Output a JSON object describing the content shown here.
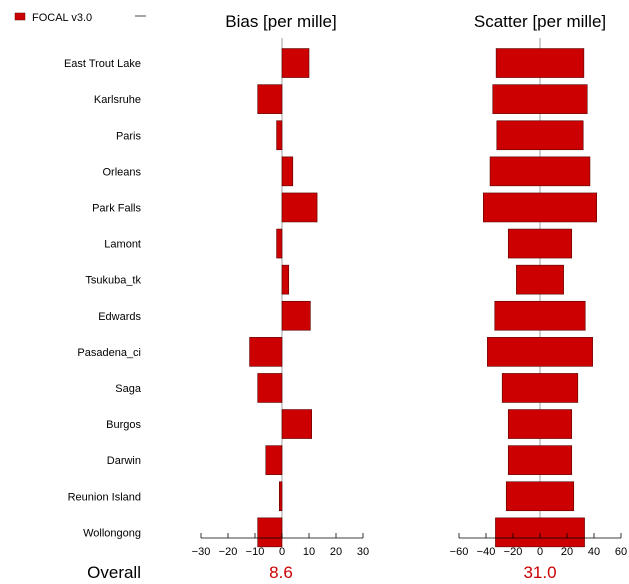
{
  "legend": {
    "label": "FOCAL v3.0",
    "color": "#cc0000"
  },
  "overall_label": "Overall",
  "chart_data": [
    {
      "type": "bar",
      "orientation": "horizontal",
      "title": "Bias [per mille]",
      "categories": [
        "East Trout Lake",
        "Karlsruhe",
        "Paris",
        "Orleans",
        "Park Falls",
        "Lamont",
        "Tsukuba_tk",
        "Edwards",
        "Pasadena_ci",
        "Saga",
        "Burgos",
        "Darwin",
        "Reunion Island",
        "Wollongong"
      ],
      "series": [
        {
          "name": "FOCAL v3.0",
          "values": [
            10,
            -9,
            -2,
            4,
            13,
            -2,
            2.5,
            10.5,
            -12,
            -9,
            11,
            -6,
            -1,
            -9
          ],
          "color": "#cc0000"
        }
      ],
      "xlim": [
        -30,
        30
      ],
      "xticks": [
        -30,
        -20,
        -10,
        0,
        10,
        20,
        30
      ],
      "baseline": "zero",
      "overall": "8.6",
      "grid": false
    },
    {
      "type": "bar",
      "orientation": "horizontal",
      "title": "Scatter [per mille]",
      "categories": [
        "East Trout Lake",
        "Karlsruhe",
        "Paris",
        "Orleans",
        "Park Falls",
        "Lamont",
        "Tsukuba_tk",
        "Edwards",
        "Pasadena_ci",
        "Saga",
        "Burgos",
        "Darwin",
        "Reunion Island",
        "Wollongong"
      ],
      "series": [
        {
          "name": "FOCAL v3.0",
          "values": [
            32.5,
            35,
            32,
            37,
            42,
            23.5,
            17.5,
            33.5,
            39,
            28,
            23.5,
            23.5,
            25,
            33
          ],
          "color": "#cc0000"
        }
      ],
      "xlim": [
        -60,
        60
      ],
      "xticks": [
        -60,
        -40,
        -20,
        0,
        20,
        40,
        60
      ],
      "baseline": "centered",
      "overall": "31.0",
      "grid": false
    }
  ]
}
